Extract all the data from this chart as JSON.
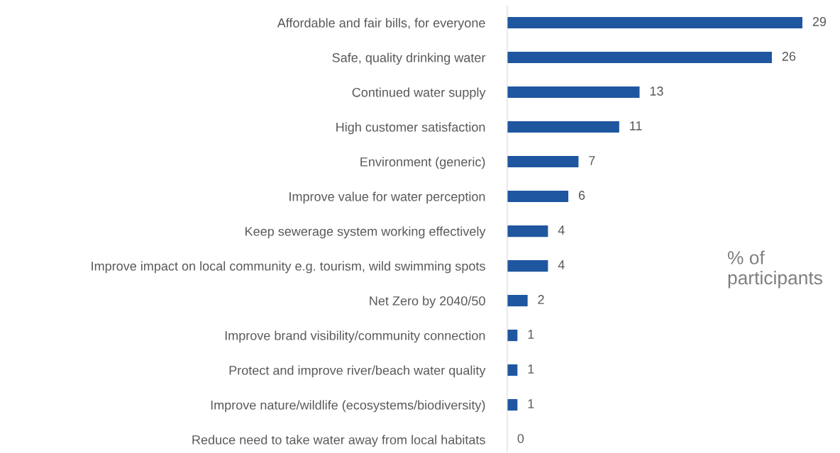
{
  "chart_data": {
    "type": "bar",
    "orientation": "horizontal",
    "categories": [
      "Affordable and fair bills, for everyone",
      "Safe, quality drinking water",
      "Continued water supply",
      "High customer satisfaction",
      "Environment (generic)",
      "Improve value for water perception",
      "Keep sewerage system working effectively",
      "Improve impact on local community e.g. tourism, wild swimming spots",
      "Net Zero by 2040/50",
      "Improve brand visibility/community connection",
      "Protect and improve river/beach water quality",
      "Improve nature/wildlife (ecosystems/biodiversity)",
      "Reduce need to take water away from local habitats"
    ],
    "values": [
      29,
      26,
      13,
      11,
      7,
      6,
      4,
      4,
      2,
      1,
      1,
      1,
      0
    ],
    "color": "#1f56a0",
    "data_labels": true,
    "grid": false,
    "legend": false,
    "annotations": [
      "% of\nparticipants"
    ]
  }
}
